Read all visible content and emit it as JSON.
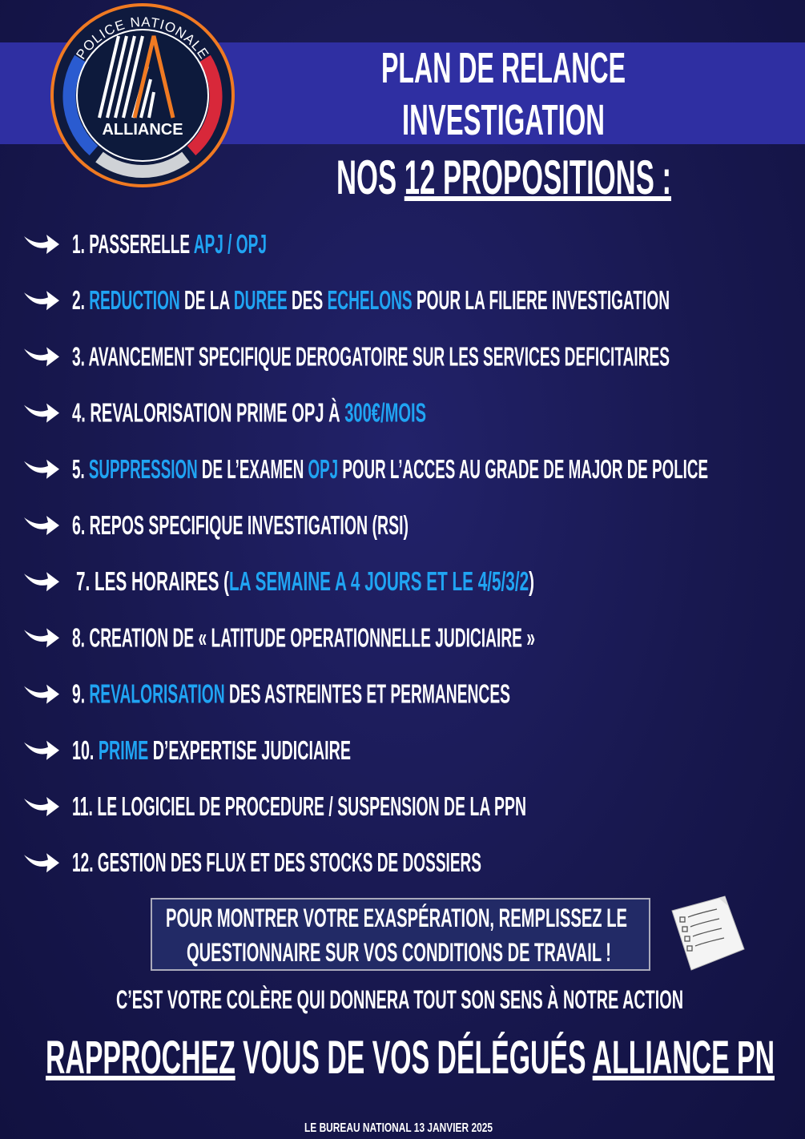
{
  "logo": {
    "ring_text": "POLICE NATIONALE",
    "name": "ALLIANCE",
    "colors": {
      "orange": "#f07a22",
      "blue": "#2a5bd0",
      "red": "#d8283a"
    }
  },
  "header": {
    "line1": "PLAN DE RELANCE",
    "line2": "INVESTIGATION",
    "line3_prefix": "NOS ",
    "line3_underlined": "12 PROPOSITIONS :"
  },
  "accent_color": "#20a4f3",
  "items": [
    [
      {
        "t": "1. PASSERELLE "
      },
      {
        "t": "APJ / OPJ",
        "hl": true
      }
    ],
    [
      {
        "t": "2. "
      },
      {
        "t": "REDUCTION",
        "hl": true
      },
      {
        "t": " DE LA "
      },
      {
        "t": "DUREE",
        "hl": true
      },
      {
        "t": " DES "
      },
      {
        "t": "ECHELONS",
        "hl": true
      },
      {
        "t": " POUR LA FILIERE INVESTIGATION"
      }
    ],
    [
      {
        "t": "3. AVANCEMENT SPECIFIQUE DEROGATOIRE SUR LES SERVICES DEFICITAIRES"
      }
    ],
    [
      {
        "t": "4. REVALORISATION PRIME OPJ À "
      },
      {
        "t": "300€/MOIS",
        "hl": true
      }
    ],
    [
      {
        "t": "5. "
      },
      {
        "t": "SUPPRESSION",
        "hl": true
      },
      {
        "t": " DE L’EXAMEN "
      },
      {
        "t": "OPJ",
        "hl": true
      },
      {
        "t": " POUR L’ACCES AU GRADE DE MAJOR DE POLICE"
      }
    ],
    [
      {
        "t": "6. REPOS SPECIFIQUE INVESTIGATION (RSI)"
      }
    ],
    [
      {
        "t": "7. LES HORAIRES ("
      },
      {
        "t": "LA SEMAINE A 4 JOURS ET LE 4/5/3/2",
        "hl": true
      },
      {
        "t": ")"
      }
    ],
    [
      {
        "t": "8. CREATION DE « LATITUDE OPERATIONNELLE JUDICIAIRE »"
      }
    ],
    [
      {
        "t": "9. "
      },
      {
        "t": "REVALORISATION",
        "hl": true
      },
      {
        "t": " DES ASTREINTES ET PERMANENCES"
      }
    ],
    [
      {
        "t": "10. "
      },
      {
        "t": "PRIME",
        "hl": true
      },
      {
        "t": " D’EXPERTISE JUDICIAIRE"
      }
    ],
    [
      {
        "t": "11. LE LOGICIEL DE PROCEDURE / SUSPENSION DE LA PPN"
      }
    ],
    [
      {
        "t": "12. GESTION DES FLUX ET DES STOCKS DE DOSSIERS"
      }
    ]
  ],
  "callout": {
    "line1": "POUR MONTRER VOTRE EXASPÉRATION, REMPLISSEZ LE",
    "line2": "QUESTIONNAIRE SUR VOS CONDITIONS DE TRAVAIL !",
    "icon": "questionnaire-paper-icon"
  },
  "tagline": "C’EST VOTRE COLÈRE QUI DONNERA TOUT SON SENS À NOTRE ACTION",
  "cta": {
    "part1": "RAPPROCHEZ",
    "part2": " VOUS DE VOS DÉLÉGUÉS ",
    "part3": "ALLIANCE PN"
  },
  "footer": "LE BUREAU NATIONAL 13 JANVIER 2025"
}
